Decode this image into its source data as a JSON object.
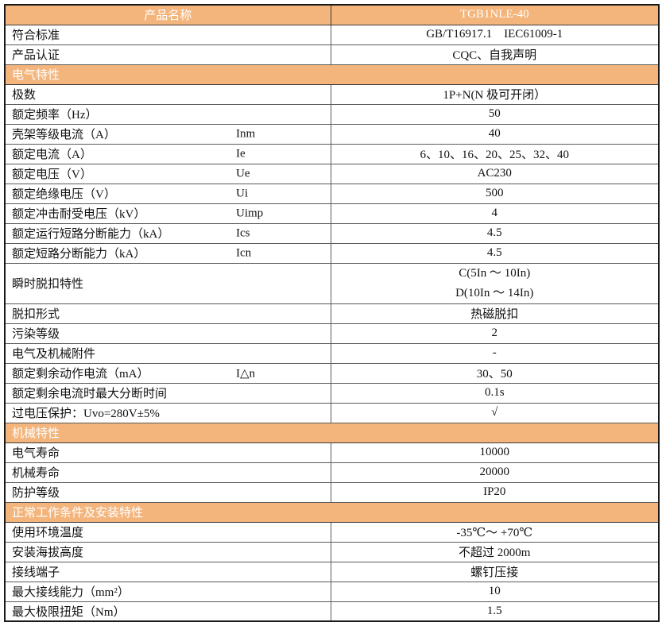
{
  "table": {
    "colors": {
      "accent": "#f4b57c",
      "border_outer": "#1a1a1a",
      "border_inner": "#5a5a5a",
      "header_text": "#ffffff"
    },
    "header": {
      "name_label": "产品名称",
      "product_name": "TGB1NLE-40"
    },
    "rows": [
      {
        "type": "kv",
        "label": "符合标准",
        "value": "GB/T16917.1    IEC61009-1"
      },
      {
        "type": "kv",
        "label": "产品认证",
        "value": "CQC、自我声明"
      },
      {
        "type": "section",
        "label": "电气特性"
      },
      {
        "type": "kv",
        "label": "极数",
        "value": "1P+N(N 极可开闭）"
      },
      {
        "type": "kv",
        "label": "额定频率（Hz）",
        "value": "50"
      },
      {
        "type": "kv",
        "label": "壳架等级电流（A）",
        "symbol": "Inm",
        "value": "40"
      },
      {
        "type": "kv",
        "label": "额定电流（A）",
        "symbol": "Ie",
        "value": "6、10、16、20、25、32、40"
      },
      {
        "type": "kv",
        "label": "额定电压（V）",
        "symbol": "Ue",
        "value": "AC230"
      },
      {
        "type": "kv",
        "label": "额定绝缘电压（V）",
        "symbol": "Ui",
        "value": "500"
      },
      {
        "type": "kv",
        "label": "额定冲击耐受电压（kV）",
        "symbol": "Uimp",
        "value": "4"
      },
      {
        "type": "kv",
        "label": "额定运行短路分断能力（kA）",
        "symbol": "Ics",
        "value": "4.5"
      },
      {
        "type": "kv",
        "label": "额定短路分断能力（kA）",
        "symbol": "Icn",
        "value": "4.5"
      },
      {
        "type": "kv",
        "label": "瞬时脱扣特性",
        "values": [
          "C(5In ～ 10In)",
          "D(10In ～ 14In)"
        ]
      },
      {
        "type": "kv",
        "label": "脱扣形式",
        "value": "热磁脱扣"
      },
      {
        "type": "kv",
        "label": "污染等级",
        "value": "2"
      },
      {
        "type": "kv",
        "label": "电气及机械附件",
        "value": "-"
      },
      {
        "type": "kv",
        "label": "额定剩余动作电流（mA）",
        "symbol": "I△n",
        "value": "30、50"
      },
      {
        "type": "kv",
        "label": "额定剩余电流时最大分断时间",
        "value": "0.1s"
      },
      {
        "type": "kv",
        "label": "过电压保护：Uvo=280V±5%",
        "value": "√"
      },
      {
        "type": "section",
        "label": "机械特性"
      },
      {
        "type": "kv",
        "label": "电气寿命",
        "value": "10000"
      },
      {
        "type": "kv",
        "label": "机械寿命",
        "value": "20000"
      },
      {
        "type": "kv",
        "label": "防护等级",
        "value": "IP20"
      },
      {
        "type": "section",
        "label": "正常工作条件及安装特性"
      },
      {
        "type": "kv",
        "label": "使用环境温度",
        "value": "-35℃～ +70℃"
      },
      {
        "type": "kv",
        "label": "安装海拔高度",
        "value": "不超过 2000m"
      },
      {
        "type": "kv",
        "label": "接线端子",
        "value": "螺钉压接"
      },
      {
        "type": "kv",
        "label": "最大接线能力（mm²）",
        "value": "10"
      },
      {
        "type": "kv",
        "label": "最大极限扭矩（Nm）",
        "value": "1.5"
      }
    ]
  }
}
